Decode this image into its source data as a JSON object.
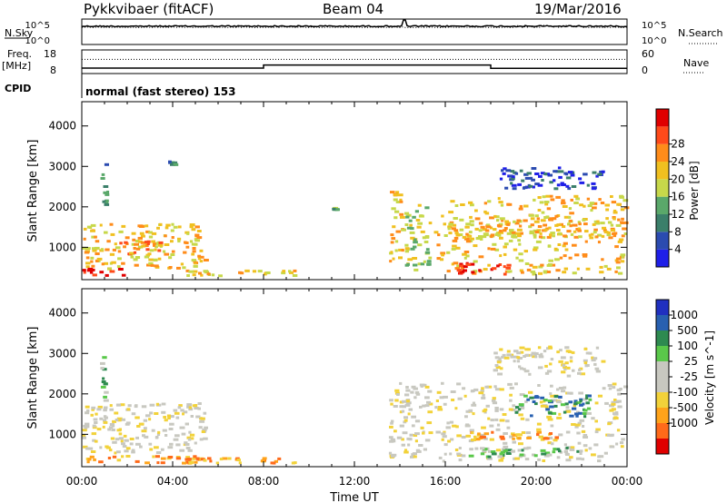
{
  "header": {
    "station": "Pykkvibaer (fitACF)",
    "beam": "Beam 04",
    "date": "19/Mar/2016"
  },
  "labels": {
    "nsky": "N.Sky",
    "nsearch": "N.Search",
    "freq": "Freq.",
    "freq_unit": "[MHz]",
    "nave": "Nave",
    "cpid": "CPID",
    "cpid_value": "normal (fast stereo) 153",
    "time_axis": "Time UT"
  },
  "colors": {
    "power": [
      "#1f1fe8",
      "#2b4bb0",
      "#3b7f6a",
      "#5aa86a",
      "#c7d84a",
      "#f0c020",
      "#ff8c1a",
      "#ff4a1a",
      "#e00000"
    ],
    "velocity": [
      "#e00000",
      "#ff6a1a",
      "#ffa31a",
      "#f2d23a",
      "#c8c8c0",
      "#c8c8c0",
      "#5ac84a",
      "#2e8a50",
      "#2860b0",
      "#2030c0"
    ]
  },
  "chart_data": [
    {
      "type": "line",
      "panel": "noise",
      "left_axis": {
        "label": "N.Sky",
        "ticks": [
          "10^5",
          "10^0"
        ]
      },
      "right_axis": {
        "label": "N.Search",
        "ticks": [
          "10^5",
          "10^0"
        ]
      },
      "x_range": [
        "00:00",
        "24:00"
      ],
      "series": [
        {
          "name": "N.Sky",
          "style": "solid",
          "level": 0.72
        },
        {
          "name": "N.Search",
          "style": "dotted",
          "level": 0.66
        }
      ],
      "spike_hours": [
        14.2
      ]
    },
    {
      "type": "line",
      "panel": "frequency",
      "left_axis": {
        "label": "Freq. [MHz]",
        "ticks": [
          18,
          8
        ]
      },
      "right_axis": {
        "label": "Nave",
        "ticks": [
          60,
          0
        ]
      },
      "series": [
        {
          "name": "Freq.",
          "style": "solid",
          "steps": [
            {
              "x": [
                0,
                8.0
              ],
              "y": 10.3
            },
            {
              "x": [
                8.0,
                18.0
              ],
              "y": 11.6
            },
            {
              "x": [
                18.0,
                24.0
              ],
              "y": 10.2
            }
          ]
        },
        {
          "name": "Nave",
          "style": "dotted",
          "value": 36
        }
      ]
    },
    {
      "type": "heatmap",
      "panel": "power",
      "xlabel": "Time UT",
      "ylabel": "Slant Range [km]",
      "colorbar_label": "Power [dB]",
      "colorbar_ticks": [
        4,
        8,
        12,
        16,
        20,
        24,
        28
      ],
      "x_ticks": [
        "00:00",
        "04:00",
        "08:00",
        "12:00",
        "16:00",
        "20:00",
        "00:00"
      ],
      "x_range": [
        0,
        24
      ],
      "y_ticks": [
        1000,
        2000,
        3000,
        4000
      ],
      "y_range": [
        200,
        4600
      ],
      "echo_regions": [
        {
          "t": [
            0.0,
            5.5
          ],
          "r": [
            400,
            1600
          ],
          "level": 5
        },
        {
          "t": [
            0.0,
            2.0
          ],
          "r": [
            250,
            500
          ],
          "level": 8
        },
        {
          "t": [
            1.5,
            3.5
          ],
          "r": [
            800,
            1200
          ],
          "level": 6
        },
        {
          "t": [
            0.8,
            1.2
          ],
          "r": [
            1800,
            3100
          ],
          "level": 2
        },
        {
          "t": [
            3.8,
            4.2
          ],
          "r": [
            3000,
            3150
          ],
          "level": 2
        },
        {
          "t": [
            4.0,
            9.5
          ],
          "r": [
            250,
            450
          ],
          "level": 5
        },
        {
          "t": [
            11.0,
            11.3
          ],
          "r": [
            1900,
            2000
          ],
          "level": 3
        },
        {
          "t": [
            13.5,
            14.2
          ],
          "r": [
            600,
            2400
          ],
          "level": 5
        },
        {
          "t": [
            14.2,
            15.4
          ],
          "r": [
            300,
            2100
          ],
          "level": 4
        },
        {
          "t": [
            15.5,
            24.0
          ],
          "r": [
            300,
            2300
          ],
          "level": 5
        },
        {
          "t": [
            16.5,
            19.0
          ],
          "r": [
            300,
            650
          ],
          "level": 8
        },
        {
          "t": [
            18.0,
            23.0
          ],
          "r": [
            2400,
            3000
          ],
          "level": 1
        },
        {
          "t": [
            16.0,
            24.0
          ],
          "r": [
            1200,
            1800
          ],
          "level": 5
        }
      ]
    },
    {
      "type": "heatmap",
      "panel": "velocity",
      "xlabel": "Time UT",
      "ylabel": "Slant Range [km]",
      "colorbar_label": "Velocity [m s^-1]",
      "colorbar_ticks": [
        1000,
        500,
        100,
        25,
        -25,
        -100,
        -500,
        -1000
      ],
      "x_ticks": [
        "00:00",
        "04:00",
        "08:00",
        "12:00",
        "16:00",
        "20:00",
        "00:00"
      ],
      "x_range": [
        0,
        24
      ],
      "y_ticks": [
        1000,
        2000,
        3000,
        4000
      ],
      "y_range": [
        200,
        4600
      ],
      "echo_regions": [
        {
          "t": [
            0.0,
            5.5
          ],
          "r": [
            500,
            1800
          ],
          "level": 4
        },
        {
          "t": [
            0.0,
            5.5
          ],
          "r": [
            250,
            500
          ],
          "level": 2
        },
        {
          "t": [
            0.8,
            1.2
          ],
          "r": [
            1800,
            3100
          ],
          "level": 6
        },
        {
          "t": [
            4.0,
            9.5
          ],
          "r": [
            250,
            450
          ],
          "level": 2
        },
        {
          "t": [
            13.5,
            15.4
          ],
          "r": [
            400,
            2300
          ],
          "level": 4
        },
        {
          "t": [
            15.5,
            24.0
          ],
          "r": [
            300,
            2300
          ],
          "level": 4
        },
        {
          "t": [
            16.5,
            22.0
          ],
          "r": [
            400,
            700
          ],
          "level": 6
        },
        {
          "t": [
            17.0,
            21.0
          ],
          "r": [
            800,
            1100
          ],
          "level": 2
        },
        {
          "t": [
            18.0,
            23.0
          ],
          "r": [
            2400,
            3200
          ],
          "level": 4
        },
        {
          "t": [
            19.0,
            22.5
          ],
          "r": [
            1400,
            2000
          ],
          "level": 7
        }
      ]
    }
  ]
}
